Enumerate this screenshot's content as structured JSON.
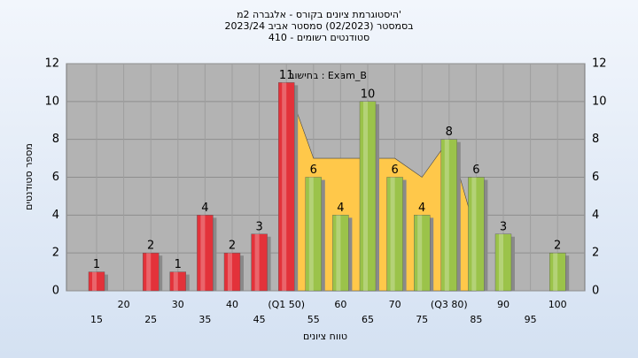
{
  "chart_data": {
    "type": "bar",
    "title": "'היסטוגרמת ציונים בקורס - אלגברה 2מ",
    "subtitle": "בסמסטר  (02/2023)  סמסטר אביב 2023/24",
    "subtitle2": "סטודנטים רשומים - 410",
    "annotation": "בחישוב : Exam_B",
    "xlabel": "טווח ציונים",
    "ylabel": "מספר סטודנטים",
    "categories": [
      "15",
      "20",
      "25",
      "30",
      "35",
      "40",
      "45",
      "(Q1 50)",
      "55",
      "60",
      "65",
      "70",
      "75",
      "(Q3 80)",
      "85",
      "90",
      "95",
      "100"
    ],
    "values": [
      1,
      0,
      2,
      1,
      4,
      2,
      3,
      11,
      6,
      4,
      10,
      6,
      4,
      8,
      6,
      3,
      0,
      2
    ],
    "colors": [
      "#e3323a",
      "#e3323a",
      "#e3323a",
      "#e3323a",
      "#e3323a",
      "#e3323a",
      "#e3323a",
      "#e3323a",
      "#9bc34a",
      "#9bc34a",
      "#9bc34a",
      "#9bc34a",
      "#9bc34a",
      "#9bc34a",
      "#9bc34a",
      "#9bc34a",
      "#9bc34a",
      "#9bc34a"
    ],
    "area": {
      "color": "#ffc84a",
      "values": [
        null,
        null,
        null,
        null,
        null,
        null,
        null,
        11,
        7,
        7,
        7,
        7,
        6,
        8,
        3,
        null,
        null,
        null
      ]
    },
    "ylim": [
      0,
      12
    ],
    "yticks": [
      0,
      2,
      4,
      6,
      8,
      10,
      12
    ],
    "y2lim": [
      0,
      12
    ],
    "y2ticks": [
      0,
      2,
      4,
      6,
      8,
      10,
      12
    ],
    "grid": true
  }
}
